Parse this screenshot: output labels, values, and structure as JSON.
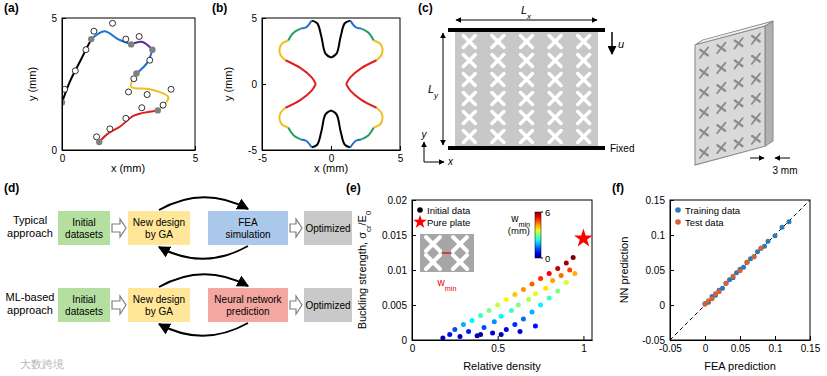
{
  "chart_data": [
    {
      "panel": "(a)",
      "type": "line",
      "xlabel": "x (mm)",
      "ylabel": "y (mm)",
      "xlim": [
        0,
        5
      ],
      "ylim": [
        0,
        5
      ],
      "xticks": [
        0,
        5
      ],
      "yticks": [
        0,
        5
      ],
      "series": [
        {
          "color": "#000000",
          "x": [
            0,
            0.3,
            0.7,
            1.1
          ],
          "values": [
            1.8,
            2.6,
            3.4,
            4.2
          ]
        },
        {
          "color": "#1f6fd0",
          "x": [
            1.1,
            1.6,
            2.1,
            2.6
          ],
          "values": [
            4.2,
            4.5,
            4.2,
            4.0
          ]
        },
        {
          "color": "#5b2c9a",
          "x": [
            2.6,
            3.0,
            3.4
          ],
          "values": [
            4.0,
            4.1,
            3.8
          ]
        },
        {
          "color": "#1f6fd0",
          "x": [
            3.4,
            3.2,
            2.8
          ],
          "values": [
            3.8,
            3.3,
            2.9
          ]
        },
        {
          "color": "#f0c020",
          "x": [
            2.8,
            2.6,
            3.3,
            4.0,
            3.6
          ],
          "values": [
            2.9,
            2.4,
            2.3,
            2.0,
            1.5
          ]
        },
        {
          "color": "#e02020",
          "x": [
            3.6,
            2.7,
            2.2,
            1.7,
            1.4
          ],
          "values": [
            1.5,
            1.3,
            0.9,
            0.6,
            0.3
          ]
        }
      ],
      "control_points": {
        "marker": "circle",
        "x": [
          0.1,
          0.5,
          0.9,
          1.2,
          1.9,
          2.4,
          2.9,
          3.3,
          2.7,
          2.5,
          3.2,
          4.1,
          3.8,
          3.0,
          2.4,
          1.8,
          1.3
        ],
        "values": [
          2.3,
          3.0,
          3.8,
          4.5,
          4.8,
          4.2,
          4.3,
          3.4,
          2.7,
          2.2,
          2.1,
          2.3,
          1.7,
          1.6,
          1.2,
          0.8,
          0.5
        ]
      },
      "joints": {
        "color": "#808080",
        "x": [
          0,
          1.1,
          2.6,
          3.4,
          2.8,
          3.6,
          1.4
        ],
        "values": [
          1.8,
          4.2,
          4.0,
          3.8,
          2.9,
          1.5,
          0.3
        ]
      }
    },
    {
      "panel": "(b)",
      "type": "line",
      "xlabel": "x (mm)",
      "ylabel": "y (mm)",
      "xlim": [
        -5,
        5
      ],
      "ylim": [
        -5,
        5
      ],
      "xticks": [
        -5,
        0,
        5
      ],
      "yticks": [
        -5,
        0,
        5
      ],
      "series": [
        {
          "color": "#000000",
          "x": [
            0,
            0.4,
            0.7,
            1.0,
            1.4,
            null,
            0,
            -0.4,
            -0.7,
            -1.0,
            -1.4,
            null,
            0,
            -0.4,
            -0.7,
            -1.0,
            -1.4,
            null,
            0,
            0.4,
            0.7,
            1.0,
            1.4
          ],
          "values": [
            2.0,
            2.3,
            3.6,
            4.6,
            4.8,
            null,
            2.0,
            2.3,
            3.6,
            4.6,
            4.8,
            null,
            -2.0,
            -2.3,
            -3.6,
            -4.6,
            -4.8,
            null,
            -2.0,
            -2.3,
            -3.6,
            -4.6,
            -4.8
          ]
        },
        {
          "color": "#1f6fd0",
          "x": [
            1.4,
            1.8,
            2.2,
            null,
            -1.4,
            -1.8,
            -2.2,
            null,
            -1.4,
            -1.8,
            -2.2,
            null,
            1.4,
            1.8,
            2.2
          ],
          "values": [
            4.8,
            4.3,
            4.2,
            null,
            4.8,
            4.3,
            4.2,
            null,
            -4.8,
            -4.3,
            -4.2,
            null,
            -4.8,
            -4.3,
            -4.2
          ]
        },
        {
          "color": "#20a060",
          "x": [
            2.2,
            2.7,
            3.1,
            null,
            -2.2,
            -2.7,
            -3.1,
            null,
            -2.2,
            -2.7,
            -3.1,
            null,
            2.2,
            2.7,
            3.1
          ],
          "values": [
            4.2,
            3.9,
            3.3,
            null,
            4.2,
            3.9,
            3.3,
            null,
            -4.2,
            -3.9,
            -3.3,
            null,
            -4.2,
            -3.9,
            -3.3
          ]
        },
        {
          "color": "#f0c020",
          "x": [
            3.1,
            3.6,
            3.7,
            3.3,
            null,
            -3.1,
            -3.6,
            -3.7,
            -3.3,
            null,
            -3.1,
            -3.6,
            -3.7,
            -3.3,
            null,
            3.1,
            3.6,
            3.7,
            3.3
          ],
          "values": [
            3.3,
            3.0,
            2.3,
            1.8,
            null,
            3.3,
            3.0,
            2.3,
            1.8,
            null,
            -3.3,
            -3.0,
            -2.3,
            -1.8,
            null,
            -3.3,
            -3.0,
            -2.3,
            -1.8
          ]
        },
        {
          "color": "#e02020",
          "x": [
            3.3,
            2.2,
            1.4,
            1.1,
            null,
            -3.3,
            -2.2,
            -1.4,
            -1.1,
            null,
            -3.3,
            -2.2,
            -1.4,
            -1.1,
            null,
            3.3,
            2.2,
            1.4,
            1.1
          ],
          "values": [
            1.8,
            1.2,
            0.5,
            0,
            null,
            1.8,
            1.2,
            0.5,
            0,
            null,
            -1.8,
            -1.2,
            -0.5,
            0,
            null,
            -1.8,
            -1.2,
            -0.5,
            0
          ]
        }
      ]
    },
    {
      "panel": "(e)",
      "type": "scatter",
      "xlabel": "Relative density",
      "ylabel": [
        "Buckling strength, σ",
        "cr",
        "/E",
        "0"
      ],
      "xlim": [
        0,
        1.05
      ],
      "ylim": [
        0,
        0.02
      ],
      "xticks": [
        0,
        0.5,
        1
      ],
      "yticks": [
        0,
        0.005,
        0.01,
        0.015,
        0.02
      ],
      "legend": "upper left",
      "series": [
        {
          "name": "Initial data",
          "color": "#000000",
          "marker": "circle",
          "x": [
            0.18,
            0.22,
            0.25,
            0.28,
            0.3,
            0.33,
            0.35,
            0.38,
            0.4,
            0.42,
            0.45,
            0.47,
            0.48,
            0.5,
            0.52,
            0.55,
            0.55,
            0.58,
            0.6,
            0.6,
            0.62,
            0.65,
            0.65,
            0.68,
            0.7,
            0.7,
            0.72,
            0.75,
            0.75,
            0.78,
            0.8,
            0.8,
            0.82,
            0.85,
            0.85,
            0.87,
            0.9,
            0.9,
            0.92,
            0.94,
            0.95,
            0.4,
            0.52,
            0.63,
            0.72
          ],
          "values": [
            0.0003,
            0.0008,
            0.0015,
            0.0005,
            0.0022,
            0.0012,
            0.0028,
            0.0006,
            0.0035,
            0.0018,
            0.0042,
            0.001,
            0.0026,
            0.005,
            0.0034,
            0.0015,
            0.0058,
            0.0042,
            0.0065,
            0.0022,
            0.005,
            0.0072,
            0.003,
            0.0058,
            0.008,
            0.004,
            0.0066,
            0.0088,
            0.005,
            0.0074,
            0.0095,
            0.006,
            0.0085,
            0.0102,
            0.007,
            0.0092,
            0.011,
            0.0082,
            0.01,
            0.0118,
            0.0095,
            0.0008,
            0.0008,
            0.0012,
            0.002
          ],
          "w": [
            0.3,
            0.8,
            1.2,
            0.4,
            1.8,
            0.9,
            2.2,
            0.3,
            2.6,
            1.2,
            3.0,
            0.5,
            1.6,
            3.4,
            2.2,
            0.7,
            3.8,
            2.6,
            4.1,
            1.0,
            3.0,
            4.4,
            1.4,
            3.3,
            4.7,
            1.8,
            3.6,
            5.0,
            2.2,
            3.9,
            5.3,
            2.6,
            4.3,
            5.6,
            3.0,
            4.6,
            5.8,
            3.5,
            4.9,
            6.0,
            4.2,
            0.2,
            0.3,
            0.5,
            0.8
          ]
        },
        {
          "name": "Pure plate",
          "color": "#ff0000",
          "marker": "star",
          "x": [
            1
          ],
          "values": [
            0.0145
          ]
        }
      ],
      "colorbar": {
        "label": [
          "w",
          "min"
        ],
        "unit": "(mm)",
        "range": [
          0,
          6
        ],
        "ticks": [
          0,
          6
        ]
      },
      "inset_label": [
        "w",
        "min"
      ]
    },
    {
      "panel": "(f)",
      "type": "scatter",
      "xlabel": "FEA prediction",
      "ylabel": "NN prediction",
      "xlim": [
        -0.05,
        0.15
      ],
      "ylim": [
        -0.05,
        0.15
      ],
      "xticks": [
        -0.05,
        0,
        0.05,
        0.1,
        0.15
      ],
      "yticks": [
        -0.05,
        0,
        0.05,
        0.1,
        0.15
      ],
      "legend": "upper left",
      "series": [
        {
          "type": "line",
          "line_style": "dashed",
          "color": "#000000",
          "x": [
            -0.05,
            0.15
          ],
          "values": [
            -0.05,
            0.15
          ]
        },
        {
          "name": "Training data",
          "color": "#2b7bb9",
          "marker": "circle",
          "x": [
            0,
            0.005,
            0.01,
            0.015,
            0.02,
            0.025,
            0.03,
            0.035,
            0.04,
            0.045,
            0.05,
            0.055,
            0.06,
            0.065,
            0.07,
            0.075,
            0.08,
            0.085,
            0.09,
            0.1,
            0.11,
            0.12
          ],
          "values": [
            0.002,
            0.004,
            0.012,
            0.014,
            0.021,
            0.024,
            0.031,
            0.036,
            0.039,
            0.046,
            0.051,
            0.054,
            0.061,
            0.066,
            0.069,
            0.076,
            0.081,
            0.084,
            0.091,
            0.099,
            0.111,
            0.119
          ]
        },
        {
          "name": "Test data",
          "color": "#d9602f",
          "marker": "circle",
          "x": [
            0,
            0.005,
            0.01,
            0.015,
            0.02,
            0.03,
            0.04,
            0.05,
            0.06,
            0.07,
            0.08
          ],
          "values": [
            0.001,
            0.006,
            0.009,
            0.016,
            0.019,
            0.031,
            0.041,
            0.049,
            0.061,
            0.069,
            0.081
          ]
        }
      ]
    }
  ],
  "diagrams": {
    "c": {
      "panel": "(c)",
      "lx": [
        "L",
        "x"
      ],
      "ly": [
        "L",
        "y"
      ],
      "u": "u",
      "fixed": "Fixed",
      "axis_x": "x",
      "axis_y": "y",
      "thickness": "3 mm"
    },
    "d": {
      "panel": "(d)",
      "rows": [
        {
          "label": [
            "Typical",
            "approach"
          ],
          "steps": [
            {
              "lines": [
                "Initial",
                "datasets"
              ],
              "color": "#b5dfa0"
            },
            {
              "lines": [
                "New design",
                "by GA"
              ],
              "color": "#ffe699"
            },
            {
              "lines": [
                "FEA",
                "simulation"
              ],
              "color": "#a9c8ea"
            },
            {
              "lines": [
                "Optimized"
              ],
              "color": "#c9c9c9"
            }
          ]
        },
        {
          "label": [
            "ML-based",
            "approach"
          ],
          "steps": [
            {
              "lines": [
                "Initial",
                "datasets"
              ],
              "color": "#b5dfa0"
            },
            {
              "lines": [
                "New design",
                "by GA"
              ],
              "color": "#ffe699"
            },
            {
              "lines": [
                "Neural network",
                "prediction"
              ],
              "color": "#f4a7a0"
            },
            {
              "lines": [
                "Optimized"
              ],
              "color": "#c9c9c9"
            }
          ]
        }
      ]
    }
  },
  "watermark": "大数跨境"
}
